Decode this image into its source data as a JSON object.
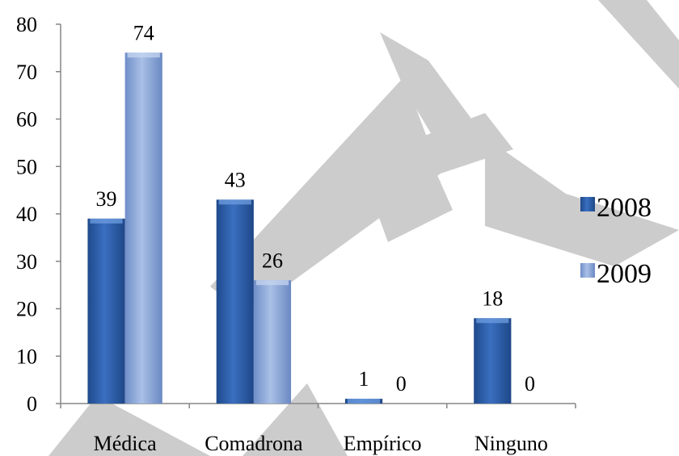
{
  "chart_data": {
    "type": "bar",
    "categories": [
      "Médica",
      "Comadrona",
      "Empírico",
      "Ninguno"
    ],
    "series": [
      {
        "name": "2008",
        "values": [
          39,
          43,
          1,
          18
        ],
        "color": "#2f5fa8"
      },
      {
        "name": "2009",
        "values": [
          74,
          26,
          0,
          0
        ],
        "color": "#8aa6d6"
      }
    ],
    "ylim": [
      0,
      80
    ],
    "yticks": [
      "0",
      "10",
      "20",
      "30",
      "40",
      "50",
      "60",
      "70",
      "80"
    ],
    "data_labels": true,
    "legend_position": "right",
    "grid": false,
    "title": "",
    "xlabel": "",
    "ylabel": ""
  }
}
